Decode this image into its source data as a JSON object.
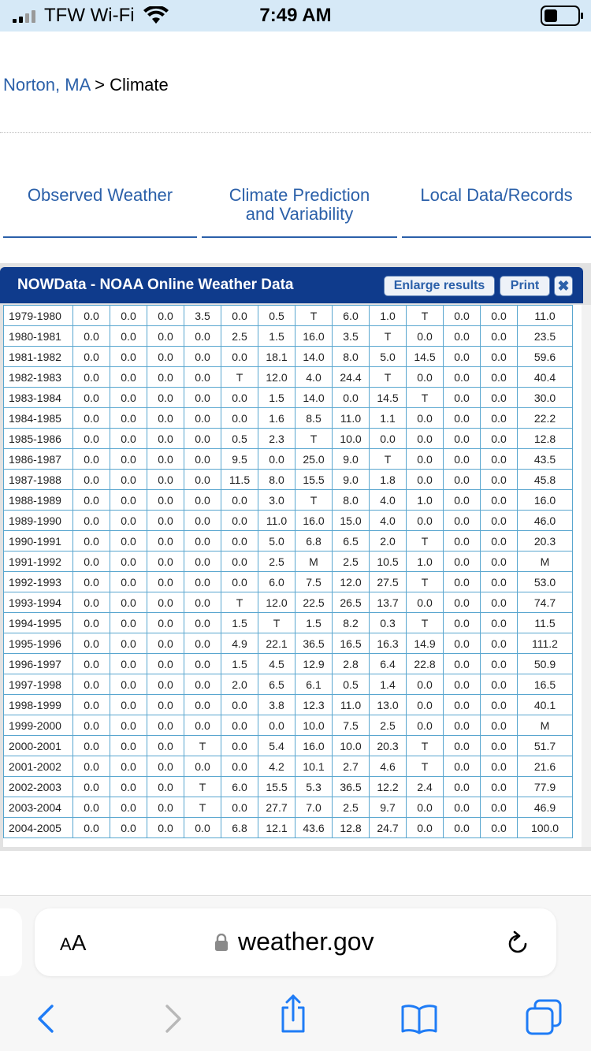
{
  "status_bar": {
    "carrier": "TFW Wi-Fi",
    "time": "7:49 AM"
  },
  "breadcrumb": {
    "location": "Norton, MA",
    "separator": ">",
    "current": "Climate"
  },
  "nav": {
    "items": [
      {
        "line1": "Observed Weather",
        "line2": ""
      },
      {
        "line1": "Climate Prediction",
        "line2": "and Variability"
      },
      {
        "line1": "Local Data/Records",
        "line2": ""
      }
    ]
  },
  "panel": {
    "title": "NOWData - NOAA Online Weather Data",
    "enlarge_label": "Enlarge results",
    "print_label": "Print",
    "close_label": "✖"
  },
  "table": {
    "rows": [
      [
        "1979-1980",
        "0.0",
        "0.0",
        "0.0",
        "3.5",
        "0.0",
        "0.5",
        "T",
        "6.0",
        "1.0",
        "T",
        "0.0",
        "0.0",
        "11.0"
      ],
      [
        "1980-1981",
        "0.0",
        "0.0",
        "0.0",
        "0.0",
        "2.5",
        "1.5",
        "16.0",
        "3.5",
        "T",
        "0.0",
        "0.0",
        "0.0",
        "23.5"
      ],
      [
        "1981-1982",
        "0.0",
        "0.0",
        "0.0",
        "0.0",
        "0.0",
        "18.1",
        "14.0",
        "8.0",
        "5.0",
        "14.5",
        "0.0",
        "0.0",
        "59.6"
      ],
      [
        "1982-1983",
        "0.0",
        "0.0",
        "0.0",
        "0.0",
        "T",
        "12.0",
        "4.0",
        "24.4",
        "T",
        "0.0",
        "0.0",
        "0.0",
        "40.4"
      ],
      [
        "1983-1984",
        "0.0",
        "0.0",
        "0.0",
        "0.0",
        "0.0",
        "1.5",
        "14.0",
        "0.0",
        "14.5",
        "T",
        "0.0",
        "0.0",
        "30.0"
      ],
      [
        "1984-1985",
        "0.0",
        "0.0",
        "0.0",
        "0.0",
        "0.0",
        "1.6",
        "8.5",
        "11.0",
        "1.1",
        "0.0",
        "0.0",
        "0.0",
        "22.2"
      ],
      [
        "1985-1986",
        "0.0",
        "0.0",
        "0.0",
        "0.0",
        "0.5",
        "2.3",
        "T",
        "10.0",
        "0.0",
        "0.0",
        "0.0",
        "0.0",
        "12.8"
      ],
      [
        "1986-1987",
        "0.0",
        "0.0",
        "0.0",
        "0.0",
        "9.5",
        "0.0",
        "25.0",
        "9.0",
        "T",
        "0.0",
        "0.0",
        "0.0",
        "43.5"
      ],
      [
        "1987-1988",
        "0.0",
        "0.0",
        "0.0",
        "0.0",
        "11.5",
        "8.0",
        "15.5",
        "9.0",
        "1.8",
        "0.0",
        "0.0",
        "0.0",
        "45.8"
      ],
      [
        "1988-1989",
        "0.0",
        "0.0",
        "0.0",
        "0.0",
        "0.0",
        "3.0",
        "T",
        "8.0",
        "4.0",
        "1.0",
        "0.0",
        "0.0",
        "16.0"
      ],
      [
        "1989-1990",
        "0.0",
        "0.0",
        "0.0",
        "0.0",
        "0.0",
        "11.0",
        "16.0",
        "15.0",
        "4.0",
        "0.0",
        "0.0",
        "0.0",
        "46.0"
      ],
      [
        "1990-1991",
        "0.0",
        "0.0",
        "0.0",
        "0.0",
        "0.0",
        "5.0",
        "6.8",
        "6.5",
        "2.0",
        "T",
        "0.0",
        "0.0",
        "20.3"
      ],
      [
        "1991-1992",
        "0.0",
        "0.0",
        "0.0",
        "0.0",
        "0.0",
        "2.5",
        "M",
        "2.5",
        "10.5",
        "1.0",
        "0.0",
        "0.0",
        "M"
      ],
      [
        "1992-1993",
        "0.0",
        "0.0",
        "0.0",
        "0.0",
        "0.0",
        "6.0",
        "7.5",
        "12.0",
        "27.5",
        "T",
        "0.0",
        "0.0",
        "53.0"
      ],
      [
        "1993-1994",
        "0.0",
        "0.0",
        "0.0",
        "0.0",
        "T",
        "12.0",
        "22.5",
        "26.5",
        "13.7",
        "0.0",
        "0.0",
        "0.0",
        "74.7"
      ],
      [
        "1994-1995",
        "0.0",
        "0.0",
        "0.0",
        "0.0",
        "1.5",
        "T",
        "1.5",
        "8.2",
        "0.3",
        "T",
        "0.0",
        "0.0",
        "11.5"
      ],
      [
        "1995-1996",
        "0.0",
        "0.0",
        "0.0",
        "0.0",
        "4.9",
        "22.1",
        "36.5",
        "16.5",
        "16.3",
        "14.9",
        "0.0",
        "0.0",
        "111.2"
      ],
      [
        "1996-1997",
        "0.0",
        "0.0",
        "0.0",
        "0.0",
        "1.5",
        "4.5",
        "12.9",
        "2.8",
        "6.4",
        "22.8",
        "0.0",
        "0.0",
        "50.9"
      ],
      [
        "1997-1998",
        "0.0",
        "0.0",
        "0.0",
        "0.0",
        "2.0",
        "6.5",
        "6.1",
        "0.5",
        "1.4",
        "0.0",
        "0.0",
        "0.0",
        "16.5"
      ],
      [
        "1998-1999",
        "0.0",
        "0.0",
        "0.0",
        "0.0",
        "0.0",
        "3.8",
        "12.3",
        "11.0",
        "13.0",
        "0.0",
        "0.0",
        "0.0",
        "40.1"
      ],
      [
        "1999-2000",
        "0.0",
        "0.0",
        "0.0",
        "0.0",
        "0.0",
        "0.0",
        "10.0",
        "7.5",
        "2.5",
        "0.0",
        "0.0",
        "0.0",
        "M"
      ],
      [
        "2000-2001",
        "0.0",
        "0.0",
        "0.0",
        "T",
        "0.0",
        "5.4",
        "16.0",
        "10.0",
        "20.3",
        "T",
        "0.0",
        "0.0",
        "51.7"
      ],
      [
        "2001-2002",
        "0.0",
        "0.0",
        "0.0",
        "0.0",
        "0.0",
        "4.2",
        "10.1",
        "2.7",
        "4.6",
        "T",
        "0.0",
        "0.0",
        "21.6"
      ],
      [
        "2002-2003",
        "0.0",
        "0.0",
        "0.0",
        "T",
        "6.0",
        "15.5",
        "5.3",
        "36.5",
        "12.2",
        "2.4",
        "0.0",
        "0.0",
        "77.9"
      ],
      [
        "2003-2004",
        "0.0",
        "0.0",
        "0.0",
        "T",
        "0.0",
        "27.7",
        "7.0",
        "2.5",
        "9.7",
        "0.0",
        "0.0",
        "0.0",
        "46.9"
      ],
      [
        "2004-2005",
        "0.0",
        "0.0",
        "0.0",
        "0.0",
        "6.8",
        "12.1",
        "43.6",
        "12.8",
        "24.7",
        "0.0",
        "0.0",
        "0.0",
        "100.0"
      ]
    ]
  },
  "browser": {
    "text_size_label": "A",
    "text_size_label_small": "A",
    "url": "weather.gov"
  },
  "icons": {
    "status": [
      "signal-icon",
      "wifi-icon",
      "battery-icon"
    ],
    "address_bar": [
      "lock-icon",
      "reload-icon"
    ],
    "toolbar": [
      "back-icon",
      "forward-icon",
      "share-icon",
      "bookmarks-icon",
      "tabs-icon"
    ]
  },
  "colors": {
    "status_bar_bg": "#d6e9f7",
    "link": "#2b60a9",
    "panel_header": "#0f3b8c",
    "table_border": "#59a6cf",
    "ios_blue": "#1f7cf6"
  }
}
